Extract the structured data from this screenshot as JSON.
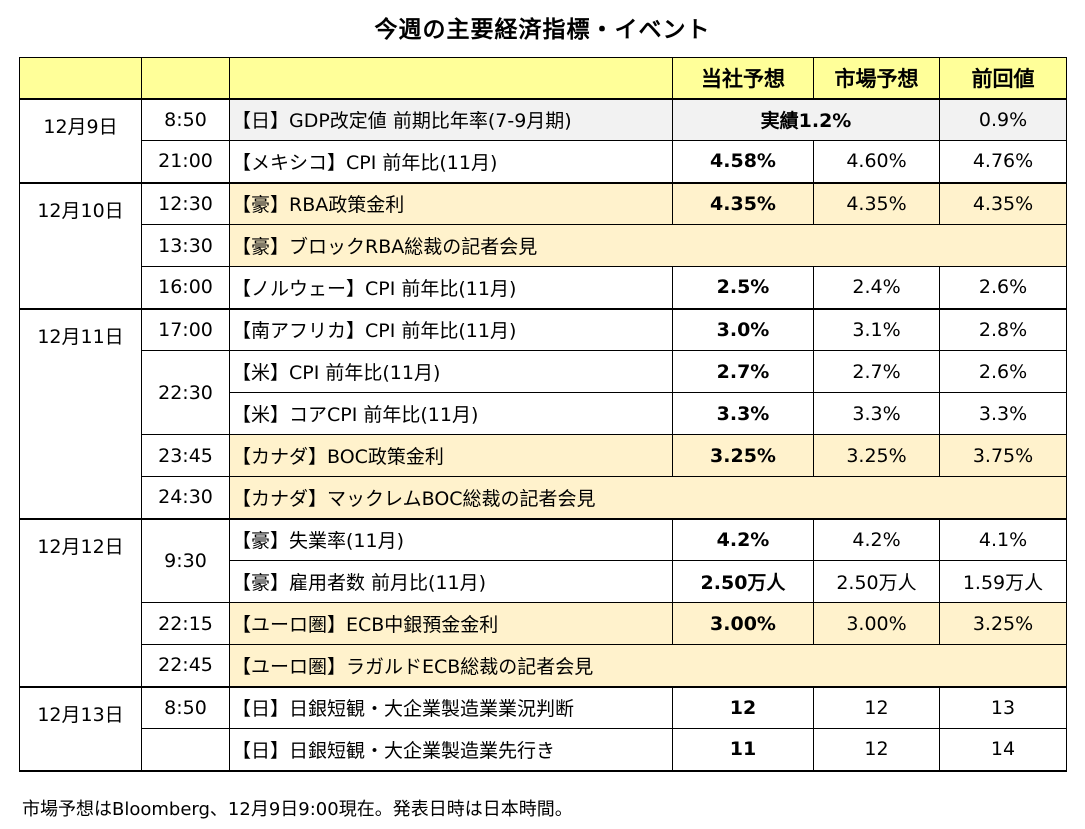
{
  "title": "今週の主要経済指標・イベント",
  "header": {
    "ours": "当社予想",
    "market": "市場予想",
    "prev": "前回値"
  },
  "rows": [
    {
      "date": "12月9日",
      "time": "8:50",
      "event": "【日】GDP改定値 前期比年率(7-9月期)",
      "ours": "実績1.2%",
      "market": "",
      "prev": "0.9%"
    },
    {
      "date": "",
      "time": "21:00",
      "event": "【メキシコ】CPI 前年比(11月)",
      "ours": "4.58%",
      "market": "4.60%",
      "prev": "4.76%"
    },
    {
      "date": "12月10日",
      "time": "12:30",
      "event": "【豪】RBA政策金利",
      "ours": "4.35%",
      "market": "4.35%",
      "prev": "4.35%"
    },
    {
      "date": "",
      "time": "13:30",
      "event": "【豪】ブロックRBA総裁の記者会見",
      "ours": "",
      "market": "",
      "prev": ""
    },
    {
      "date": "",
      "time": "16:00",
      "event": "【ノルウェー】CPI 前年比(11月)",
      "ours": "2.5%",
      "market": "2.4%",
      "prev": "2.6%"
    },
    {
      "date": "12月11日",
      "time": "17:00",
      "event": "【南アフリカ】CPI 前年比(11月)",
      "ours": "3.0%",
      "market": "3.1%",
      "prev": "2.8%"
    },
    {
      "date": "",
      "time": "22:30",
      "event": "【米】CPI 前年比(11月)",
      "ours": "2.7%",
      "market": "2.7%",
      "prev": "2.6%"
    },
    {
      "date": "",
      "time": "",
      "event": "【米】コアCPI 前年比(11月)",
      "ours": "3.3%",
      "market": "3.3%",
      "prev": "3.3%"
    },
    {
      "date": "",
      "time": "23:45",
      "event": "【カナダ】BOC政策金利",
      "ours": "3.25%",
      "market": "3.25%",
      "prev": "3.75%"
    },
    {
      "date": "",
      "time": "24:30",
      "event": "【カナダ】マックレムBOC総裁の記者会見",
      "ours": "",
      "market": "",
      "prev": ""
    },
    {
      "date": "12月12日",
      "time": "9:30",
      "event": "【豪】失業率(11月)",
      "ours": "4.2%",
      "market": "4.2%",
      "prev": "4.1%"
    },
    {
      "date": "",
      "time": "",
      "event": "【豪】雇用者数 前月比(11月)",
      "ours": "2.50万人",
      "market": "2.50万人",
      "prev": "1.59万人"
    },
    {
      "date": "",
      "time": "22:15",
      "event": "【ユーロ圏】ECB中銀預金金利",
      "ours": "3.00%",
      "market": "3.00%",
      "prev": "3.25%"
    },
    {
      "date": "",
      "time": "22:45",
      "event": "【ユーロ圏】ラガルドECB総裁の記者会見",
      "ours": "",
      "market": "",
      "prev": ""
    },
    {
      "date": "12月13日",
      "time": "8:50",
      "event": "【日】日銀短観・大企業製造業業況判断",
      "ours": "12",
      "market": "12",
      "prev": "13"
    },
    {
      "date": "",
      "time": "",
      "event": "【日】日銀短観・大企業製造業先行き",
      "ours": "11",
      "market": "12",
      "prev": "14"
    }
  ],
  "footnote": "市場予想はBloomberg、12月9日9:00現在。発表日時は日本時間。",
  "colors": {
    "header_bg": "#ffff99",
    "highlight_bg": "#fff2cc",
    "alt_bg": "#f2f2f2"
  }
}
